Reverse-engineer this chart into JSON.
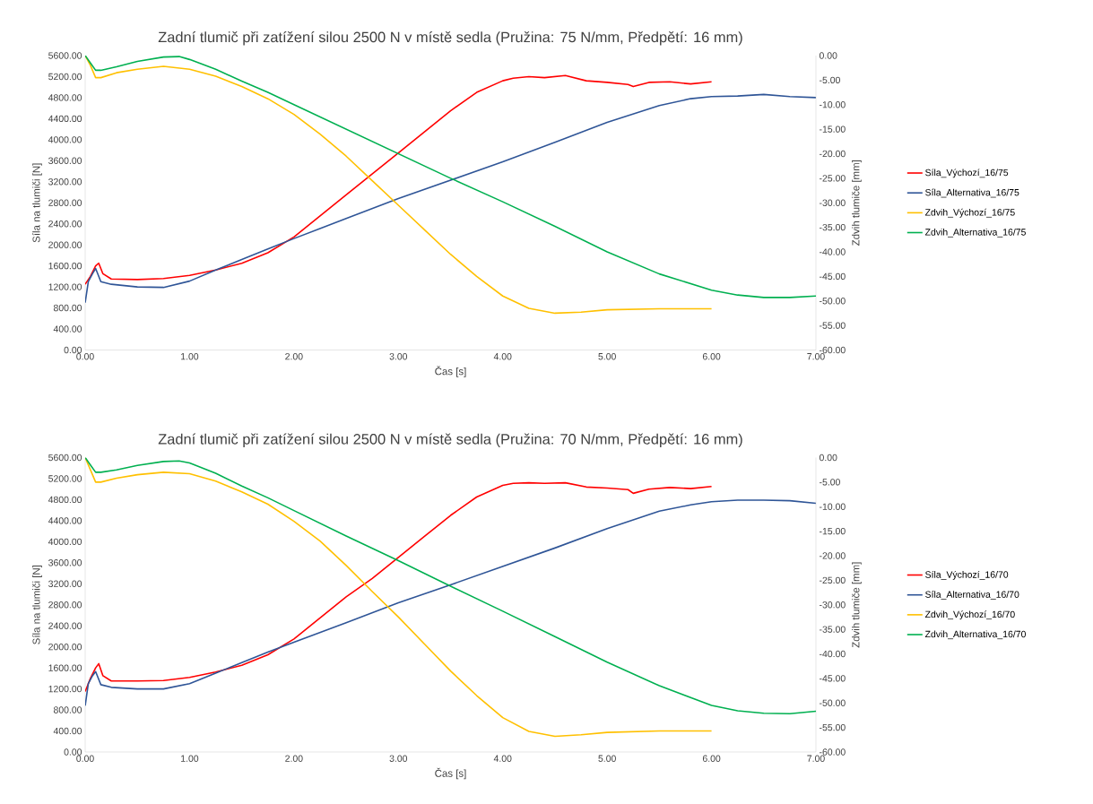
{
  "chart_data": [
    {
      "type": "line",
      "title": "Zadní tlumič při zatížení silou 2500 N v místě sedla (Pružina: 75 N/mm, Předpětí: 16 mm)",
      "xlabel": "Čas [s]",
      "ylabel": "Síla na tlumiči [N]",
      "y2label": "Zdvih tlumiče [mm]",
      "legend": "right",
      "xlim": [
        0,
        7
      ],
      "ylim": [
        0,
        5600
      ],
      "y2lim": [
        -60,
        0
      ],
      "xticks": [
        {
          "value": 0,
          "label": "0.00"
        },
        {
          "value": 1,
          "label": "1.00"
        },
        {
          "value": 2,
          "label": "2.00"
        },
        {
          "value": 3,
          "label": "3.00"
        },
        {
          "value": 4,
          "label": "4.00"
        },
        {
          "value": 5,
          "label": "5.00"
        },
        {
          "value": 6,
          "label": "6.00"
        },
        {
          "value": 7,
          "label": "7.00"
        }
      ],
      "yticks": [
        {
          "value": 0,
          "label": "0.00"
        },
        {
          "value": 400,
          "label": "400.00"
        },
        {
          "value": 800,
          "label": "800.00"
        },
        {
          "value": 1200,
          "label": "1200.00"
        },
        {
          "value": 1600,
          "label": "1600.00"
        },
        {
          "value": 2000,
          "label": "2000.00"
        },
        {
          "value": 2400,
          "label": "2400.00"
        },
        {
          "value": 2800,
          "label": "2800.00"
        },
        {
          "value": 3200,
          "label": "3200.00"
        },
        {
          "value": 3600,
          "label": "3600.00"
        },
        {
          "value": 4000,
          "label": "4000.00"
        },
        {
          "value": 4400,
          "label": "4400.00"
        },
        {
          "value": 4800,
          "label": "4800.00"
        },
        {
          "value": 5200,
          "label": "5200.00"
        },
        {
          "value": 5600,
          "label": "5600.00"
        }
      ],
      "y2ticks": [
        {
          "value": -60,
          "label": "-60.00"
        },
        {
          "value": -55,
          "label": "-55.00"
        },
        {
          "value": -50,
          "label": "-50.00"
        },
        {
          "value": -45,
          "label": "-45.00"
        },
        {
          "value": -40,
          "label": "-40.00"
        },
        {
          "value": -35,
          "label": "-35.00"
        },
        {
          "value": -30,
          "label": "-30.00"
        },
        {
          "value": -25,
          "label": "-25.00"
        },
        {
          "value": -20,
          "label": "-20.00"
        },
        {
          "value": -15,
          "label": "-15.00"
        },
        {
          "value": -10,
          "label": "-10.00"
        },
        {
          "value": -5,
          "label": "-5.00"
        },
        {
          "value": 0,
          "label": "0.00"
        }
      ],
      "series": [
        {
          "name": "Síla_Výchozí_16/75",
          "color": "#ff0000",
          "x": [
            0,
            0.05,
            0.1,
            0.13,
            0.17,
            0.25,
            0.5,
            0.75,
            1.0,
            1.25,
            1.5,
            1.75,
            2.0,
            2.25,
            2.5,
            2.75,
            3.0,
            3.25,
            3.5,
            3.75,
            4.0,
            4.1,
            4.25,
            4.4,
            4.6,
            4.8,
            5.0,
            5.2,
            5.25,
            5.4,
            5.6,
            5.8,
            6.0
          ],
          "values": [
            1250,
            1400,
            1600,
            1650,
            1450,
            1350,
            1340,
            1360,
            1420,
            1520,
            1650,
            1850,
            2150,
            2550,
            2950,
            3350,
            3750,
            4150,
            4550,
            4900,
            5120,
            5170,
            5200,
            5180,
            5220,
            5120,
            5090,
            5050,
            5010,
            5090,
            5100,
            5060,
            5100
          ]
        },
        {
          "name": "Síla_Alternativa_16/75",
          "color": "#2f5597",
          "x": [
            0,
            0.03,
            0.07,
            0.1,
            0.15,
            0.25,
            0.5,
            0.75,
            1.0,
            1.25,
            1.5,
            1.75,
            2.0,
            2.5,
            3.0,
            3.5,
            4.0,
            4.5,
            5.0,
            5.5,
            5.8,
            6.0,
            6.25,
            6.5,
            6.75,
            7.0
          ],
          "values": [
            900,
            1300,
            1450,
            1550,
            1300,
            1250,
            1200,
            1190,
            1310,
            1520,
            1720,
            1920,
            2120,
            2500,
            2880,
            3230,
            3580,
            3950,
            4330,
            4650,
            4780,
            4820,
            4830,
            4860,
            4820,
            4800
          ]
        },
        {
          "name": "Zdvih_Výchozí_16/75",
          "color": "#ffc000",
          "axis": "y2",
          "x": [
            0,
            0.05,
            0.1,
            0.15,
            0.3,
            0.5,
            0.75,
            1.0,
            1.25,
            1.5,
            1.75,
            2.0,
            2.25,
            2.5,
            2.75,
            3.0,
            3.25,
            3.5,
            3.75,
            4.0,
            4.25,
            4.5,
            4.75,
            5.0,
            5.5,
            6.0
          ],
          "values": [
            0,
            -2,
            -4.5,
            -4.5,
            -3.5,
            -2.8,
            -2.2,
            -2.8,
            -4.2,
            -6.3,
            -8.8,
            -12,
            -16,
            -20.5,
            -25.5,
            -30.5,
            -35.5,
            -40.5,
            -45,
            -49,
            -51.5,
            -52.5,
            -52.3,
            -51.8,
            -51.6,
            -51.6
          ]
        },
        {
          "name": "Zdvih_Alternativa_16/75",
          "color": "#00b050",
          "axis": "y2",
          "x": [
            0,
            0.05,
            0.1,
            0.15,
            0.3,
            0.5,
            0.75,
            0.9,
            1.0,
            1.25,
            1.5,
            1.75,
            2.0,
            2.5,
            3.0,
            3.5,
            4.0,
            4.5,
            5.0,
            5.5,
            6.0,
            6.25,
            6.5,
            6.75,
            7.0
          ],
          "values": [
            0,
            -1.5,
            -3,
            -3,
            -2.3,
            -1.2,
            -0.3,
            -0.2,
            -0.8,
            -2.8,
            -5.2,
            -7.5,
            -10,
            -15,
            -20,
            -25,
            -29.8,
            -34.8,
            -40,
            -44.5,
            -47.8,
            -48.8,
            -49.3,
            -49.3,
            -49
          ]
        }
      ]
    },
    {
      "type": "line",
      "title": "Zadní tlumič při zatížení silou 2500 N v místě sedla (Pružina: 70 N/mm, Předpětí: 16 mm)",
      "xlabel": "Čas [s]",
      "ylabel": "Síla na tlumiči [N]",
      "y2label": "Zdvih tlumiče [mm]",
      "legend": "right",
      "xlim": [
        0,
        7
      ],
      "ylim": [
        0,
        5600
      ],
      "y2lim": [
        -60,
        0
      ],
      "xticks": [
        {
          "value": 0,
          "label": "0.00"
        },
        {
          "value": 1,
          "label": "1.00"
        },
        {
          "value": 2,
          "label": "2.00"
        },
        {
          "value": 3,
          "label": "3.00"
        },
        {
          "value": 4,
          "label": "4.00"
        },
        {
          "value": 5,
          "label": "5.00"
        },
        {
          "value": 6,
          "label": "6.00"
        },
        {
          "value": 7,
          "label": "7.00"
        }
      ],
      "yticks": [
        {
          "value": 0,
          "label": "0.00"
        },
        {
          "value": 400,
          "label": "400.00"
        },
        {
          "value": 800,
          "label": "800.00"
        },
        {
          "value": 1200,
          "label": "1200.00"
        },
        {
          "value": 1600,
          "label": "1600.00"
        },
        {
          "value": 2000,
          "label": "2000.00"
        },
        {
          "value": 2400,
          "label": "2400.00"
        },
        {
          "value": 2800,
          "label": "2800.00"
        },
        {
          "value": 3200,
          "label": "3200.00"
        },
        {
          "value": 3600,
          "label": "3600.00"
        },
        {
          "value": 4000,
          "label": "4000.00"
        },
        {
          "value": 4400,
          "label": "4400.00"
        },
        {
          "value": 4800,
          "label": "4800.00"
        },
        {
          "value": 5200,
          "label": "5200.00"
        },
        {
          "value": 5600,
          "label": "5600.00"
        }
      ],
      "y2ticks": [
        {
          "value": -60,
          "label": "-60.00"
        },
        {
          "value": -55,
          "label": "-55.00"
        },
        {
          "value": -50,
          "label": "-50.00"
        },
        {
          "value": -45,
          "label": "-45.00"
        },
        {
          "value": -40,
          "label": "-40.00"
        },
        {
          "value": -35,
          "label": "-35.00"
        },
        {
          "value": -30,
          "label": "-30.00"
        },
        {
          "value": -25,
          "label": "-25.00"
        },
        {
          "value": -20,
          "label": "-20.00"
        },
        {
          "value": -15,
          "label": "-15.00"
        },
        {
          "value": -10,
          "label": "-10.00"
        },
        {
          "value": -5,
          "label": "-5.00"
        },
        {
          "value": 0,
          "label": "0.00"
        }
      ],
      "series": [
        {
          "name": "Síla_Výchozí_16/70",
          "color": "#ff0000",
          "x": [
            0,
            0.05,
            0.1,
            0.13,
            0.17,
            0.25,
            0.5,
            0.75,
            1.0,
            1.25,
            1.5,
            1.75,
            2.0,
            2.25,
            2.5,
            2.75,
            3.0,
            3.25,
            3.5,
            3.75,
            4.0,
            4.1,
            4.25,
            4.4,
            4.6,
            4.8,
            5.0,
            5.2,
            5.25,
            5.4,
            5.6,
            5.8,
            6.0
          ],
          "values": [
            1150,
            1400,
            1600,
            1680,
            1450,
            1350,
            1350,
            1360,
            1420,
            1520,
            1650,
            1850,
            2150,
            2550,
            2950,
            3300,
            3700,
            4100,
            4500,
            4850,
            5070,
            5110,
            5120,
            5110,
            5120,
            5040,
            5020,
            4990,
            4920,
            5000,
            5030,
            5010,
            5050
          ]
        },
        {
          "name": "Síla_Alternativa_16/70",
          "color": "#2f5597",
          "x": [
            0,
            0.03,
            0.07,
            0.1,
            0.15,
            0.25,
            0.5,
            0.75,
            1.0,
            1.25,
            1.5,
            1.75,
            2.0,
            2.5,
            3.0,
            3.5,
            4.0,
            4.5,
            5.0,
            5.5,
            5.8,
            6.0,
            6.25,
            6.5,
            6.75,
            7.0
          ],
          "values": [
            880,
            1300,
            1450,
            1530,
            1280,
            1230,
            1200,
            1200,
            1300,
            1500,
            1700,
            1900,
            2090,
            2460,
            2840,
            3180,
            3530,
            3880,
            4250,
            4580,
            4700,
            4760,
            4790,
            4790,
            4780,
            4730
          ]
        },
        {
          "name": "Zdvih_Výchozí_16/70",
          "color": "#ffc000",
          "axis": "y2",
          "x": [
            0,
            0.05,
            0.1,
            0.15,
            0.3,
            0.5,
            0.75,
            1.0,
            1.25,
            1.5,
            1.75,
            2.0,
            2.25,
            2.5,
            2.75,
            3.0,
            3.25,
            3.5,
            3.75,
            4.0,
            4.25,
            4.5,
            4.75,
            5.0,
            5.5,
            6.0
          ],
          "values": [
            0,
            -2.5,
            -5,
            -5,
            -4.2,
            -3.5,
            -3,
            -3.3,
            -4.8,
            -7,
            -9.5,
            -13,
            -17,
            -22,
            -27.3,
            -32.5,
            -38,
            -43.5,
            -48.5,
            -53,
            -55.8,
            -56.8,
            -56.5,
            -56,
            -55.7,
            -55.7
          ]
        },
        {
          "name": "Zdvih_Alternativa_16/70",
          "color": "#00b050",
          "axis": "y2",
          "x": [
            0,
            0.05,
            0.1,
            0.15,
            0.3,
            0.5,
            0.75,
            0.9,
            1.0,
            1.25,
            1.5,
            1.75,
            2.0,
            2.5,
            3.0,
            3.5,
            4.0,
            4.5,
            5.0,
            5.5,
            6.0,
            6.25,
            6.5,
            6.75,
            7.0
          ],
          "values": [
            0,
            -1.5,
            -3,
            -3,
            -2.5,
            -1.6,
            -0.8,
            -0.7,
            -1.1,
            -3.2,
            -5.8,
            -8.2,
            -10.8,
            -16,
            -21,
            -26.2,
            -31.3,
            -36.5,
            -41.7,
            -46.5,
            -50.5,
            -51.6,
            -52.1,
            -52.2,
            -51.7
          ]
        }
      ]
    }
  ]
}
